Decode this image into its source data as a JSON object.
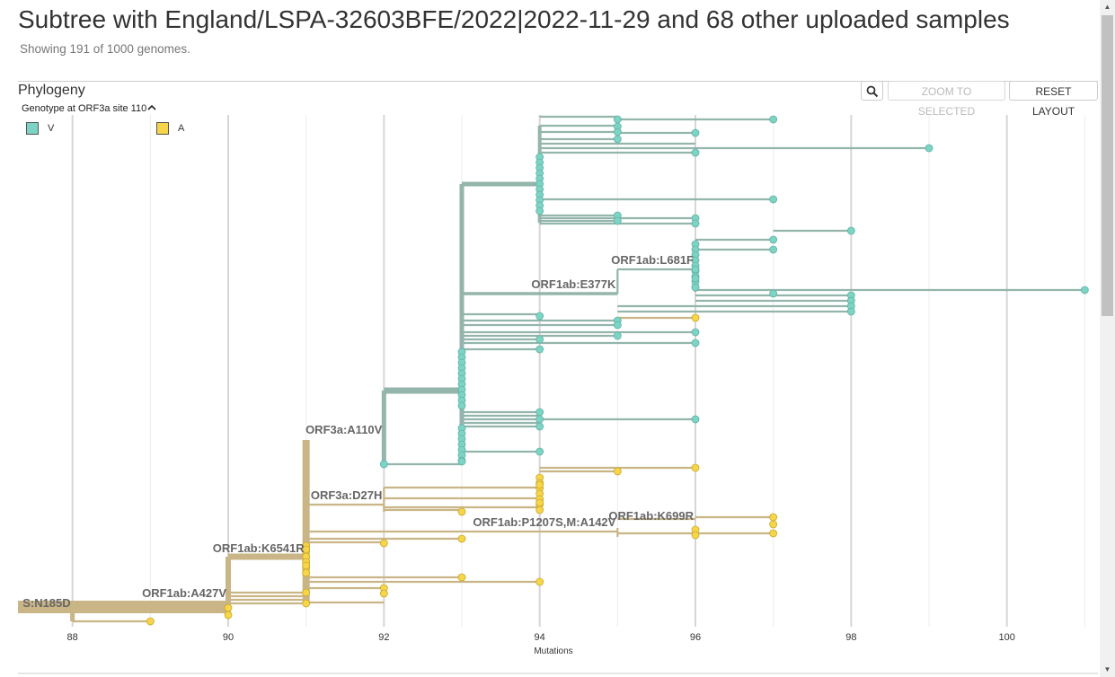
{
  "header": {
    "title": "Subtree with England/LSPA-32603BFE/2022|2022-11-29 and 68 other uploaded samples",
    "subtitle": "Showing 191 of 1000 genomes."
  },
  "panel": {
    "title": "Phylogeny",
    "buttons": {
      "zoom_icon": "search-icon",
      "zoom_to_selected": "ZOOM TO SELECTED",
      "reset_layout": "RESET LAYOUT"
    }
  },
  "legend": {
    "title": "Genotype at ORF3a site 110",
    "items": [
      {
        "label": "V",
        "color": "#7dd4c4"
      },
      {
        "label": "A",
        "color": "#f7d54a"
      }
    ]
  },
  "colors": {
    "teal_branch": "#93b5ac",
    "gold_branch": "#c9b585",
    "teal_tip": "#7dd4c4",
    "gold_tip": "#f7d54a"
  },
  "chart_data": {
    "type": "tree",
    "xlabel": "Mutations",
    "xlim": [
      87.3,
      101.1
    ],
    "x_ticks": [
      88,
      90,
      92,
      94,
      96,
      98,
      100
    ],
    "mutation_labels": [
      {
        "text": "S:N185D",
        "x": 88
      },
      {
        "text": "ORF1ab:A427V",
        "x": 90
      },
      {
        "text": "ORF1ab:K6541R",
        "x": 91
      },
      {
        "text": "ORF3a:A110V",
        "x": 92
      },
      {
        "text": "ORF3a:D27H",
        "x": 92
      },
      {
        "text": "ORF1ab:P1207S,M:A142V",
        "x": 95
      },
      {
        "text": "ORF1ab:K699R",
        "x": 96
      },
      {
        "text": "ORF1ab:E377K",
        "x": 95
      },
      {
        "text": "ORF1ab:L681F",
        "x": 96
      }
    ],
    "branches_teal": [
      [
        92,
        92,
        435,
        517
      ],
      [
        92,
        93,
        435,
        435
      ],
      [
        92,
        93,
        517,
        517
      ],
      [
        93,
        93,
        205,
        517
      ],
      [
        93,
        94,
        205,
        205
      ],
      [
        94,
        94,
        140,
        248
      ],
      [
        94,
        95,
        130,
        130
      ],
      [
        95,
        97,
        133,
        133
      ],
      [
        94,
        95,
        140,
        140
      ],
      [
        94,
        95,
        147,
        147
      ],
      [
        94,
        95,
        155,
        155
      ],
      [
        95,
        96,
        148,
        148
      ],
      [
        94,
        96,
        160,
        160
      ],
      [
        94,
        99,
        165,
        165
      ],
      [
        94,
        96,
        170,
        170
      ],
      [
        94,
        97,
        222,
        222
      ],
      [
        94,
        95,
        240,
        240
      ],
      [
        94,
        96,
        243,
        243
      ],
      [
        94,
        95,
        246,
        246
      ],
      [
        94,
        96,
        249,
        249
      ],
      [
        93,
        95,
        327,
        327
      ],
      [
        95,
        95,
        300,
        327
      ],
      [
        95,
        96,
        300,
        300
      ],
      [
        96,
        96,
        270,
        325
      ],
      [
        96,
        97,
        267,
        267
      ],
      [
        97,
        98,
        257,
        257
      ],
      [
        96,
        97,
        278,
        278
      ],
      [
        96,
        101,
        323,
        323
      ],
      [
        96,
        98,
        329,
        329
      ],
      [
        96,
        98,
        335,
        335
      ],
      [
        95,
        98,
        341,
        341
      ],
      [
        95,
        98,
        347,
        347
      ],
      [
        93,
        94,
        350,
        350
      ],
      [
        93,
        95,
        357,
        357
      ],
      [
        93,
        95,
        362,
        362
      ],
      [
        93,
        96,
        370,
        370
      ],
      [
        93,
        95,
        374,
        374
      ],
      [
        93,
        94,
        378,
        378
      ],
      [
        93,
        96,
        382,
        382
      ],
      [
        93,
        94,
        389,
        389
      ],
      [
        93,
        94,
        459,
        459
      ],
      [
        93,
        94,
        463,
        463
      ],
      [
        93,
        96,
        467,
        467
      ],
      [
        93,
        94,
        471,
        471
      ],
      [
        93,
        94,
        475,
        475
      ],
      [
        93,
        94,
        503,
        503
      ]
    ],
    "branches_gold": [
      [
        87.3,
        90,
        676,
        676
      ],
      [
        88,
        88,
        670,
        692
      ],
      [
        88,
        89,
        692,
        692
      ],
      [
        90,
        90,
        620,
        688
      ],
      [
        90,
        91,
        620,
        620
      ],
      [
        90,
        91,
        660,
        660
      ],
      [
        90,
        91,
        664,
        664
      ],
      [
        90,
        91,
        668,
        668
      ],
      [
        90,
        91,
        672,
        672
      ],
      [
        91,
        91,
        490,
        670
      ],
      [
        91,
        92,
        562,
        562
      ],
      [
        92,
        92,
        543,
        570
      ],
      [
        92,
        94,
        543,
        543
      ],
      [
        92,
        94,
        555,
        555
      ],
      [
        92,
        93,
        568,
        568
      ],
      [
        92,
        94,
        565,
        565
      ],
      [
        94,
        94,
        530,
        570
      ],
      [
        94,
        95,
        525,
        525
      ],
      [
        94,
        96,
        521,
        521
      ],
      [
        91,
        95,
        592,
        592
      ],
      [
        95,
        95,
        588,
        598
      ],
      [
        95,
        96,
        578,
        578
      ],
      [
        96,
        97,
        576,
        576
      ],
      [
        95,
        97,
        594,
        594
      ],
      [
        91,
        92,
        604,
        604
      ],
      [
        91,
        93,
        600,
        600
      ],
      [
        91,
        94,
        648,
        648
      ],
      [
        91,
        93,
        643,
        643
      ],
      [
        91,
        92,
        655,
        655
      ],
      [
        91,
        92,
        671,
        671
      ],
      [
        95,
        96,
        354,
        354
      ]
    ],
    "tips_teal": [
      [
        95,
        133
      ],
      [
        97,
        133
      ],
      [
        95,
        141
      ],
      [
        95,
        147
      ],
      [
        95,
        155
      ],
      [
        96,
        148
      ],
      [
        96,
        170
      ],
      [
        99,
        165
      ],
      [
        97,
        222
      ],
      [
        95,
        240
      ],
      [
        95,
        246
      ],
      [
        96,
        243
      ],
      [
        96,
        249
      ],
      [
        97,
        267
      ],
      [
        98,
        257
      ],
      [
        97,
        278
      ],
      [
        101,
        323
      ],
      [
        97,
        327
      ],
      [
        98,
        329
      ],
      [
        98,
        335
      ],
      [
        98,
        341
      ],
      [
        98,
        347
      ],
      [
        94,
        352
      ],
      [
        95,
        357
      ],
      [
        95,
        362
      ],
      [
        96,
        370
      ],
      [
        95,
        374
      ],
      [
        94,
        378
      ],
      [
        96,
        382
      ],
      [
        94,
        389
      ],
      [
        94,
        459
      ],
      [
        94,
        467
      ],
      [
        96,
        467
      ],
      [
        94,
        475
      ],
      [
        94,
        503
      ],
      [
        92,
        517
      ],
      [
        93,
        514
      ],
      [
        96,
        300
      ],
      [
        96,
        310
      ],
      [
        96,
        320
      ]
    ],
    "tips_gold": [
      [
        89,
        692
      ],
      [
        90,
        677
      ],
      [
        90,
        685
      ],
      [
        91,
        612
      ],
      [
        91,
        630
      ],
      [
        91,
        660
      ],
      [
        91,
        672
      ],
      [
        92,
        605
      ],
      [
        92,
        655
      ],
      [
        92,
        661
      ],
      [
        93,
        570
      ],
      [
        93,
        600
      ],
      [
        93,
        643
      ],
      [
        94,
        540
      ],
      [
        94,
        560
      ],
      [
        94,
        648
      ],
      [
        95,
        525
      ],
      [
        96,
        521
      ],
      [
        96,
        354
      ],
      [
        96,
        590
      ],
      [
        96,
        596
      ],
      [
        97,
        576
      ],
      [
        97,
        584
      ],
      [
        97,
        594
      ]
    ]
  }
}
